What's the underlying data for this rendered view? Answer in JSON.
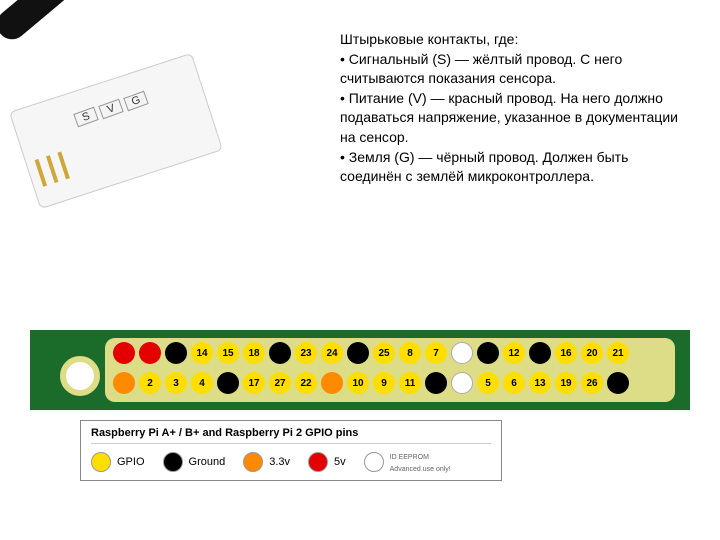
{
  "module": {
    "pin_labels": [
      "S",
      "V",
      "G"
    ]
  },
  "description": {
    "title": "Штырьковые контакты, где:",
    "items": [
      "Сигнальный (S) — жёлтый провод. С него считываются показания сенсора.",
      "Питание (V) — красный провод. На него должно подаваться напряжение, указанное в документации на сенсор.",
      "Земля (G) — чёрный провод. Должен быть соединён с землёй микроконтроллера."
    ]
  },
  "colors": {
    "gpio": "#ffde00",
    "ground": "#000000",
    "v3_3": "#ff8a00",
    "v5": "#e40000",
    "eeprom": "#ffffff",
    "board": "#1b6b2a",
    "strip": "#dddd88"
  },
  "pinout": {
    "row1": [
      {
        "color": "#e40000",
        "label": ""
      },
      {
        "color": "#e40000",
        "label": ""
      },
      {
        "color": "#000000",
        "label": ""
      },
      {
        "color": "#ffde00",
        "label": "14"
      },
      {
        "color": "#ffde00",
        "label": "15"
      },
      {
        "color": "#ffde00",
        "label": "18"
      },
      {
        "color": "#000000",
        "label": ""
      },
      {
        "color": "#ffde00",
        "label": "23"
      },
      {
        "color": "#ffde00",
        "label": "24"
      },
      {
        "color": "#000000",
        "label": ""
      },
      {
        "color": "#ffde00",
        "label": "25"
      },
      {
        "color": "#ffde00",
        "label": "8"
      },
      {
        "color": "#ffde00",
        "label": "7"
      },
      {
        "color": "#ffffff",
        "label": ""
      },
      {
        "color": "#000000",
        "label": ""
      },
      {
        "color": "#ffde00",
        "label": "12"
      },
      {
        "color": "#000000",
        "label": ""
      },
      {
        "color": "#ffde00",
        "label": "16"
      },
      {
        "color": "#ffde00",
        "label": "20"
      },
      {
        "color": "#ffde00",
        "label": "21"
      }
    ],
    "row2": [
      {
        "color": "#ff8a00",
        "label": ""
      },
      {
        "color": "#ffde00",
        "label": "2"
      },
      {
        "color": "#ffde00",
        "label": "3"
      },
      {
        "color": "#ffde00",
        "label": "4"
      },
      {
        "color": "#000000",
        "label": ""
      },
      {
        "color": "#ffde00",
        "label": "17"
      },
      {
        "color": "#ffde00",
        "label": "27"
      },
      {
        "color": "#ffde00",
        "label": "22"
      },
      {
        "color": "#ff8a00",
        "label": ""
      },
      {
        "color": "#ffde00",
        "label": "10"
      },
      {
        "color": "#ffde00",
        "label": "9"
      },
      {
        "color": "#ffde00",
        "label": "11"
      },
      {
        "color": "#000000",
        "label": ""
      },
      {
        "color": "#ffffff",
        "label": ""
      },
      {
        "color": "#ffde00",
        "label": "5"
      },
      {
        "color": "#ffde00",
        "label": "6"
      },
      {
        "color": "#ffde00",
        "label": "13"
      },
      {
        "color": "#ffde00",
        "label": "19"
      },
      {
        "color": "#ffde00",
        "label": "26"
      },
      {
        "color": "#000000",
        "label": ""
      }
    ]
  },
  "legend": {
    "title": "Raspberry Pi A+ / B+ and Raspberry Pi 2 GPIO pins",
    "items": [
      {
        "color": "#ffde00",
        "label": "GPIO"
      },
      {
        "color": "#000000",
        "label": "Ground"
      },
      {
        "color": "#ff8a00",
        "label": "3.3v"
      },
      {
        "color": "#e40000",
        "label": "5v"
      },
      {
        "color": "#ffffff",
        "label": "ID EEPROM",
        "note": "Advanced use only!"
      }
    ]
  }
}
